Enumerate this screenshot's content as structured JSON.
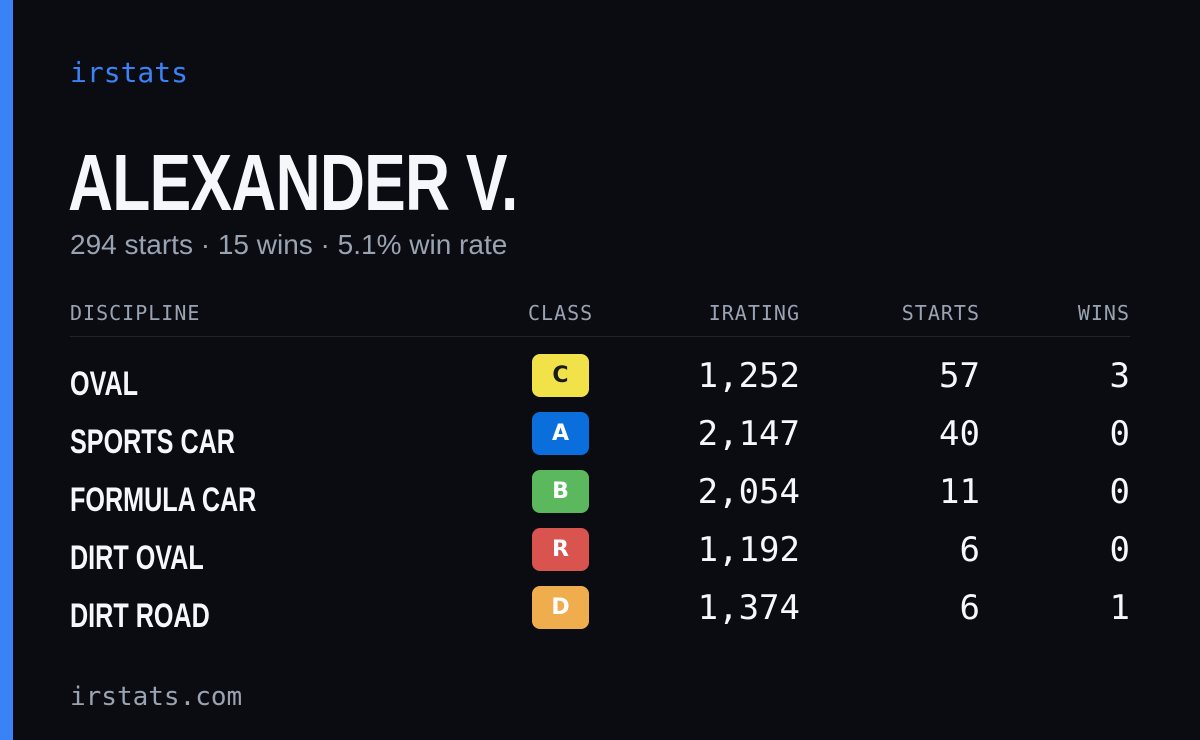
{
  "brand": "irstats",
  "driver": {
    "name": "ALEXANDER V.",
    "summary": "294 starts · 15 wins · 5.1% win rate"
  },
  "colors": {
    "accent": "#3b82f6",
    "background": "#0a0c12"
  },
  "table": {
    "headers": {
      "discipline": "DISCIPLINE",
      "class": "CLASS",
      "irating": "IRATING",
      "starts": "STARTS",
      "wins": "WINS"
    },
    "rows": [
      {
        "discipline": "OVAL",
        "class": "C",
        "class_color": "#f2e24a",
        "class_text_color": "#1a1a1a",
        "irating": "1,252",
        "starts": "57",
        "wins": "3"
      },
      {
        "discipline": "SPORTS CAR",
        "class": "A",
        "class_color": "#0a6fdc",
        "class_text_color": "#ffffff",
        "irating": "2,147",
        "starts": "40",
        "wins": "0"
      },
      {
        "discipline": "FORMULA CAR",
        "class": "B",
        "class_color": "#5cb85c",
        "class_text_color": "#ffffff",
        "irating": "2,054",
        "starts": "11",
        "wins": "0"
      },
      {
        "discipline": "DIRT OVAL",
        "class": "R",
        "class_color": "#d9534f",
        "class_text_color": "#ffffff",
        "irating": "1,192",
        "starts": "6",
        "wins": "0"
      },
      {
        "discipline": "DIRT ROAD",
        "class": "D",
        "class_color": "#f0ad4e",
        "class_text_color": "#ffffff",
        "irating": "1,374",
        "starts": "6",
        "wins": "1"
      }
    ]
  },
  "footer": "irstats.com"
}
